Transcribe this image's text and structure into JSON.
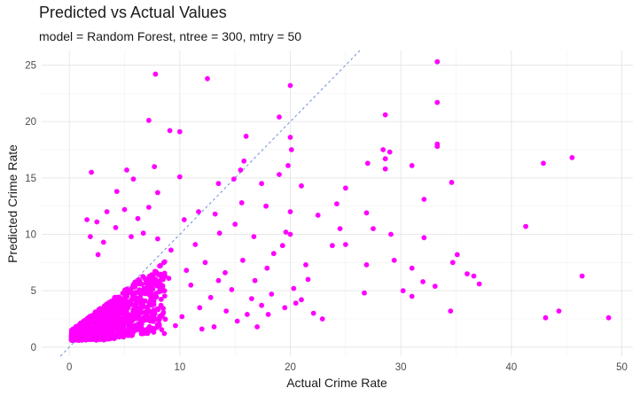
{
  "chart_data": {
    "type": "scatter",
    "title": "Predicted vs Actual Values",
    "subtitle": "model = Random Forest, ntree = 300, mtry = 50",
    "xlabel": "Actual Crime Rate",
    "ylabel": "Predicted Crime Rate",
    "xlim": [
      -2.5,
      51
    ],
    "ylim": [
      -0.8,
      26.3
    ],
    "x_ticks": [
      "0",
      "10",
      "20",
      "30",
      "40",
      "50"
    ],
    "y_ticks": [
      "0",
      "5",
      "10",
      "15",
      "20",
      "25"
    ],
    "grid": true,
    "reference_line": {
      "type": "identity",
      "style": "dashed",
      "color": "#6d8fd6"
    },
    "point_color": "#ff00ff",
    "series": [
      {
        "values": [
          [
            33.3,
            25.3
          ],
          [
            7.8,
            24.2
          ],
          [
            12.5,
            23.8
          ],
          [
            20.0,
            23.2
          ],
          [
            33.3,
            21.7
          ],
          [
            19.0,
            20.4
          ],
          [
            28.6,
            20.6
          ],
          [
            7.2,
            20.1
          ],
          [
            10.0,
            19.1
          ],
          [
            9.1,
            19.2
          ],
          [
            20.0,
            18.6
          ],
          [
            16.0,
            18.7
          ],
          [
            33.3,
            18.0
          ],
          [
            33.3,
            17.8
          ],
          [
            27.0,
            16.3
          ],
          [
            15.8,
            16.5
          ],
          [
            20.1,
            17.5
          ],
          [
            28.4,
            17.5
          ],
          [
            29.0,
            17.3
          ],
          [
            28.6,
            16.7
          ],
          [
            31.0,
            16.1
          ],
          [
            42.9,
            16.3
          ],
          [
            45.5,
            16.8
          ],
          [
            28.6,
            15.8
          ],
          [
            7.7,
            16.0
          ],
          [
            2.0,
            15.5
          ],
          [
            5.2,
            15.7
          ],
          [
            5.8,
            14.9
          ],
          [
            10.0,
            15.1
          ],
          [
            14.9,
            14.9
          ],
          [
            15.5,
            15.7
          ],
          [
            34.6,
            14.6
          ],
          [
            19.0,
            15.3
          ],
          [
            19.8,
            16.1
          ],
          [
            17.4,
            14.5
          ],
          [
            21.0,
            14.3
          ],
          [
            25.0,
            14.1
          ],
          [
            32.1,
            13.1
          ],
          [
            13.5,
            14.5
          ],
          [
            17.8,
            12.5
          ],
          [
            20.0,
            12.0
          ],
          [
            15.6,
            12.8
          ],
          [
            24.2,
            12.7
          ],
          [
            4.3,
            13.8
          ],
          [
            1.6,
            11.3
          ],
          [
            8.0,
            13.7
          ],
          [
            26.9,
            11.9
          ],
          [
            22.5,
            11.7
          ],
          [
            27.5,
            10.5
          ],
          [
            24.5,
            10.5
          ],
          [
            19.6,
            10.2
          ],
          [
            20.0,
            10.0
          ],
          [
            29.1,
            10.0
          ],
          [
            32.1,
            9.7
          ],
          [
            25.0,
            9.1
          ],
          [
            23.8,
            9.0
          ],
          [
            41.3,
            10.7
          ],
          [
            35.1,
            8.2
          ],
          [
            29.4,
            7.7
          ],
          [
            34.7,
            7.5
          ],
          [
            31.0,
            7.0
          ],
          [
            36.0,
            6.5
          ],
          [
            36.6,
            6.3
          ],
          [
            46.4,
            6.3
          ],
          [
            37.1,
            5.6
          ],
          [
            30.2,
            5.0
          ],
          [
            32.0,
            5.8
          ],
          [
            33.1,
            5.4
          ],
          [
            26.7,
            4.8
          ],
          [
            31.0,
            4.5
          ],
          [
            34.5,
            3.2
          ],
          [
            44.3,
            3.2
          ],
          [
            43.1,
            2.6
          ],
          [
            48.8,
            2.6
          ],
          [
            22.9,
            2.5
          ],
          [
            21.6,
            6.0
          ],
          [
            26.9,
            7.3
          ],
          [
            21.4,
            7.3
          ],
          [
            19.3,
            9.0
          ],
          [
            18.5,
            8.3
          ],
          [
            16.7,
            9.8
          ],
          [
            13.6,
            10.1
          ],
          [
            11.4,
            9.1
          ],
          [
            12.3,
            7.5
          ],
          [
            10.6,
            6.8
          ],
          [
            9.2,
            8.6
          ],
          [
            8.0,
            9.6
          ],
          [
            6.7,
            10.1
          ],
          [
            5.6,
            9.8
          ],
          [
            4.2,
            10.6
          ],
          [
            3.1,
            9.3
          ],
          [
            2.6,
            8.2
          ],
          [
            6.2,
            11.4
          ],
          [
            7.2,
            12.4
          ],
          [
            5.0,
            12.2
          ],
          [
            3.4,
            12.0
          ],
          [
            2.5,
            11.1
          ],
          [
            1.9,
            9.8
          ],
          [
            10.4,
            11.3
          ],
          [
            11.7,
            12.0
          ],
          [
            13.2,
            11.8
          ],
          [
            15.0,
            10.9
          ],
          [
            17.9,
            7.0
          ],
          [
            15.7,
            7.7
          ],
          [
            14.1,
            6.6
          ],
          [
            16.8,
            5.9
          ],
          [
            18.3,
            4.7
          ],
          [
            20.3,
            5.2
          ],
          [
            21.0,
            4.2
          ],
          [
            19.5,
            3.5
          ],
          [
            17.4,
            3.7
          ],
          [
            16.1,
            2.9
          ],
          [
            14.2,
            3.2
          ],
          [
            12.8,
            4.4
          ],
          [
            11.8,
            3.5
          ],
          [
            10.2,
            2.7
          ],
          [
            9.6,
            1.9
          ],
          [
            13.1,
            1.8
          ],
          [
            15.2,
            2.3
          ],
          [
            8.3,
            3.7
          ],
          [
            7.5,
            5.6
          ],
          [
            9.0,
            6.1
          ],
          [
            11.0,
            5.5
          ],
          [
            13.5,
            5.9
          ],
          [
            14.7,
            5.1
          ],
          [
            16.5,
            4.3
          ],
          [
            18.0,
            2.9
          ],
          [
            20.5,
            3.9
          ],
          [
            22.1,
            3.0
          ],
          [
            17.0,
            1.8
          ],
          [
            12.0,
            1.6
          ],
          [
            8.6,
            1.2
          ],
          [
            6.0,
            1.5
          ],
          [
            4.9,
            0.9
          ],
          [
            3.8,
            1.3
          ]
        ]
      }
    ]
  }
}
